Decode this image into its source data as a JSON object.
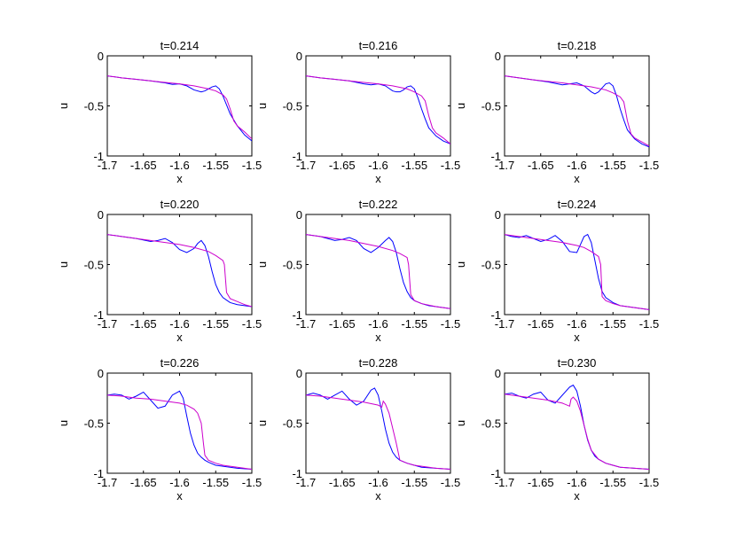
{
  "chart_data": [
    {
      "type": "line",
      "title": "t=0.214",
      "xlabel": "x",
      "ylabel": "u",
      "xlim": [
        -1.7,
        -1.5
      ],
      "ylim": [
        -1,
        0
      ],
      "xticks": [
        "-1.7",
        "-1.65",
        "-1.6",
        "-1.55",
        "-1.5"
      ],
      "yticks": [
        "0",
        "-0.5",
        "-1"
      ],
      "grid": false,
      "series": [
        {
          "color": "#0000ff",
          "x": [
            -1.7,
            -1.68,
            -1.66,
            -1.64,
            -1.62,
            -1.61,
            -1.6,
            -1.59,
            -1.58,
            -1.57,
            -1.565,
            -1.56,
            -1.555,
            -1.55,
            -1.545,
            -1.54,
            -1.535,
            -1.53,
            -1.52,
            -1.51,
            -1.5
          ],
          "y": [
            -0.2,
            -0.22,
            -0.235,
            -0.25,
            -0.27,
            -0.285,
            -0.28,
            -0.3,
            -0.34,
            -0.36,
            -0.35,
            -0.33,
            -0.31,
            -0.3,
            -0.33,
            -0.4,
            -0.49,
            -0.58,
            -0.7,
            -0.79,
            -0.85
          ]
        },
        {
          "color": "#cc00cc",
          "x": [
            -1.7,
            -1.68,
            -1.66,
            -1.64,
            -1.62,
            -1.6,
            -1.58,
            -1.56,
            -1.55,
            -1.54,
            -1.535,
            -1.53,
            -1.525,
            -1.52,
            -1.51,
            -1.5
          ],
          "y": [
            -0.2,
            -0.22,
            -0.235,
            -0.25,
            -0.265,
            -0.28,
            -0.3,
            -0.33,
            -0.35,
            -0.39,
            -0.43,
            -0.53,
            -0.65,
            -0.7,
            -0.76,
            -0.83
          ]
        }
      ]
    },
    {
      "type": "line",
      "title": "t=0.216",
      "xlabel": "x",
      "ylabel": "u",
      "xlim": [
        -1.7,
        -1.5
      ],
      "ylim": [
        -1,
        0
      ],
      "xticks": [
        "-1.7",
        "-1.65",
        "-1.6",
        "-1.55",
        "-1.5"
      ],
      "yticks": [
        "0",
        "-0.5",
        "-1"
      ],
      "grid": false,
      "series": [
        {
          "color": "#0000ff",
          "x": [
            -1.7,
            -1.68,
            -1.66,
            -1.64,
            -1.62,
            -1.61,
            -1.6,
            -1.59,
            -1.58,
            -1.575,
            -1.57,
            -1.565,
            -1.56,
            -1.555,
            -1.55,
            -1.545,
            -1.54,
            -1.535,
            -1.53,
            -1.52,
            -1.51,
            -1.5
          ],
          "y": [
            -0.2,
            -0.22,
            -0.235,
            -0.25,
            -0.28,
            -0.29,
            -0.28,
            -0.3,
            -0.35,
            -0.36,
            -0.36,
            -0.34,
            -0.31,
            -0.3,
            -0.33,
            -0.42,
            -0.53,
            -0.63,
            -0.72,
            -0.8,
            -0.85,
            -0.88
          ]
        },
        {
          "color": "#cc00cc",
          "x": [
            -1.7,
            -1.68,
            -1.66,
            -1.64,
            -1.62,
            -1.6,
            -1.58,
            -1.56,
            -1.55,
            -1.54,
            -1.535,
            -1.53,
            -1.525,
            -1.52,
            -1.51,
            -1.5
          ],
          "y": [
            -0.2,
            -0.22,
            -0.235,
            -0.25,
            -0.265,
            -0.28,
            -0.3,
            -0.33,
            -0.36,
            -0.4,
            -0.45,
            -0.6,
            -0.72,
            -0.77,
            -0.82,
            -0.88
          ]
        }
      ]
    },
    {
      "type": "line",
      "title": "t=0.218",
      "xlabel": "x",
      "ylabel": "u",
      "xlim": [
        -1.7,
        -1.5
      ],
      "ylim": [
        -1,
        0
      ],
      "xticks": [
        "-1.7",
        "-1.65",
        "-1.6",
        "-1.55",
        "-1.5"
      ],
      "yticks": [
        "0",
        "-0.5",
        "-1"
      ],
      "grid": false,
      "series": [
        {
          "color": "#0000ff",
          "x": [
            -1.7,
            -1.68,
            -1.66,
            -1.64,
            -1.62,
            -1.61,
            -1.6,
            -1.59,
            -1.58,
            -1.575,
            -1.57,
            -1.565,
            -1.56,
            -1.555,
            -1.55,
            -1.545,
            -1.54,
            -1.535,
            -1.53,
            -1.52,
            -1.51,
            -1.5
          ],
          "y": [
            -0.2,
            -0.22,
            -0.24,
            -0.26,
            -0.29,
            -0.28,
            -0.27,
            -0.3,
            -0.36,
            -0.38,
            -0.36,
            -0.32,
            -0.28,
            -0.27,
            -0.3,
            -0.4,
            -0.53,
            -0.64,
            -0.74,
            -0.83,
            -0.88,
            -0.91
          ]
        },
        {
          "color": "#cc00cc",
          "x": [
            -1.7,
            -1.68,
            -1.66,
            -1.64,
            -1.62,
            -1.6,
            -1.58,
            -1.56,
            -1.55,
            -1.54,
            -1.535,
            -1.53,
            -1.525,
            -1.52,
            -1.51,
            -1.5
          ],
          "y": [
            -0.2,
            -0.22,
            -0.24,
            -0.255,
            -0.27,
            -0.29,
            -0.31,
            -0.34,
            -0.37,
            -0.41,
            -0.46,
            -0.65,
            -0.78,
            -0.82,
            -0.86,
            -0.9
          ]
        }
      ]
    },
    {
      "type": "line",
      "title": "t=0.220",
      "xlabel": "x",
      "ylabel": "u",
      "xlim": [
        -1.7,
        -1.5
      ],
      "ylim": [
        -1,
        0
      ],
      "xticks": [
        "-1.7",
        "-1.65",
        "-1.6",
        "-1.55",
        "-1.5"
      ],
      "yticks": [
        "0",
        "-0.5",
        "-1"
      ],
      "grid": false,
      "series": [
        {
          "color": "#0000ff",
          "x": [
            -1.7,
            -1.68,
            -1.66,
            -1.64,
            -1.63,
            -1.62,
            -1.61,
            -1.6,
            -1.59,
            -1.58,
            -1.575,
            -1.57,
            -1.565,
            -1.56,
            -1.555,
            -1.55,
            -1.545,
            -1.54,
            -1.53,
            -1.52,
            -1.51,
            -1.5
          ],
          "y": [
            -0.2,
            -0.22,
            -0.24,
            -0.27,
            -0.26,
            -0.24,
            -0.28,
            -0.35,
            -0.38,
            -0.34,
            -0.29,
            -0.26,
            -0.31,
            -0.42,
            -0.57,
            -0.7,
            -0.78,
            -0.83,
            -0.88,
            -0.9,
            -0.91,
            -0.92
          ]
        },
        {
          "color": "#cc00cc",
          "x": [
            -1.7,
            -1.68,
            -1.66,
            -1.64,
            -1.62,
            -1.6,
            -1.58,
            -1.56,
            -1.55,
            -1.54,
            -1.538,
            -1.535,
            -1.53,
            -1.52,
            -1.51,
            -1.5
          ],
          "y": [
            -0.2,
            -0.22,
            -0.24,
            -0.26,
            -0.28,
            -0.3,
            -0.33,
            -0.37,
            -0.41,
            -0.46,
            -0.5,
            -0.78,
            -0.84,
            -0.87,
            -0.9,
            -0.92
          ]
        }
      ]
    },
    {
      "type": "line",
      "title": "t=0.222",
      "xlabel": "x",
      "ylabel": "u",
      "xlim": [
        -1.7,
        -1.5
      ],
      "ylim": [
        -1,
        0
      ],
      "xticks": [
        "-1.7",
        "-1.65",
        "-1.6",
        "-1.55",
        "-1.5"
      ],
      "yticks": [
        "0",
        "-0.5",
        "-1"
      ],
      "grid": false,
      "series": [
        {
          "color": "#0000ff",
          "x": [
            -1.7,
            -1.68,
            -1.66,
            -1.65,
            -1.64,
            -1.63,
            -1.62,
            -1.61,
            -1.6,
            -1.59,
            -1.585,
            -1.58,
            -1.575,
            -1.57,
            -1.565,
            -1.56,
            -1.555,
            -1.55,
            -1.54,
            -1.53,
            -1.52,
            -1.51,
            -1.5
          ],
          "y": [
            -0.2,
            -0.22,
            -0.26,
            -0.25,
            -0.23,
            -0.26,
            -0.34,
            -0.38,
            -0.33,
            -0.26,
            -0.23,
            -0.27,
            -0.38,
            -0.54,
            -0.68,
            -0.77,
            -0.83,
            -0.86,
            -0.89,
            -0.91,
            -0.92,
            -0.93,
            -0.94
          ]
        },
        {
          "color": "#cc00cc",
          "x": [
            -1.7,
            -1.68,
            -1.66,
            -1.64,
            -1.62,
            -1.6,
            -1.58,
            -1.57,
            -1.56,
            -1.558,
            -1.555,
            -1.55,
            -1.54,
            -1.52,
            -1.5
          ],
          "y": [
            -0.2,
            -0.22,
            -0.24,
            -0.26,
            -0.29,
            -0.32,
            -0.36,
            -0.39,
            -0.43,
            -0.5,
            -0.8,
            -0.86,
            -0.89,
            -0.92,
            -0.94
          ]
        }
      ]
    },
    {
      "type": "line",
      "title": "t=0.224",
      "xlabel": "x",
      "ylabel": "u",
      "xlim": [
        -1.7,
        -1.5
      ],
      "ylim": [
        -1,
        0
      ],
      "xticks": [
        "-1.7",
        "-1.65",
        "-1.6",
        "-1.55",
        "-1.5"
      ],
      "yticks": [
        "0",
        "-0.5",
        "-1"
      ],
      "grid": false,
      "series": [
        {
          "color": "#0000ff",
          "x": [
            -1.7,
            -1.69,
            -1.68,
            -1.67,
            -1.66,
            -1.65,
            -1.64,
            -1.63,
            -1.62,
            -1.61,
            -1.6,
            -1.595,
            -1.59,
            -1.585,
            -1.58,
            -1.575,
            -1.57,
            -1.565,
            -1.56,
            -1.55,
            -1.54,
            -1.52,
            -1.5
          ],
          "y": [
            -0.2,
            -0.22,
            -0.23,
            -0.21,
            -0.24,
            -0.27,
            -0.25,
            -0.21,
            -0.27,
            -0.37,
            -0.38,
            -0.3,
            -0.22,
            -0.2,
            -0.28,
            -0.46,
            -0.64,
            -0.77,
            -0.83,
            -0.88,
            -0.91,
            -0.93,
            -0.95
          ]
        },
        {
          "color": "#cc00cc",
          "x": [
            -1.7,
            -1.68,
            -1.66,
            -1.64,
            -1.62,
            -1.6,
            -1.59,
            -1.58,
            -1.57,
            -1.567,
            -1.565,
            -1.56,
            -1.55,
            -1.54,
            -1.52,
            -1.5
          ],
          "y": [
            -0.2,
            -0.22,
            -0.24,
            -0.26,
            -0.28,
            -0.31,
            -0.33,
            -0.37,
            -0.42,
            -0.5,
            -0.82,
            -0.86,
            -0.89,
            -0.91,
            -0.93,
            -0.95
          ]
        }
      ]
    },
    {
      "type": "line",
      "title": "t=0.226",
      "xlabel": "x",
      "ylabel": "u",
      "xlim": [
        -1.7,
        -1.5
      ],
      "ylim": [
        -1,
        0
      ],
      "xticks": [
        "-1.7",
        "-1.65",
        "-1.6",
        "-1.55",
        "-1.5"
      ],
      "yticks": [
        "0",
        "-0.5",
        "-1"
      ],
      "grid": false,
      "series": [
        {
          "color": "#0000ff",
          "x": [
            -1.7,
            -1.69,
            -1.68,
            -1.67,
            -1.66,
            -1.65,
            -1.64,
            -1.63,
            -1.62,
            -1.61,
            -1.6,
            -1.595,
            -1.59,
            -1.585,
            -1.58,
            -1.575,
            -1.57,
            -1.565,
            -1.56,
            -1.55,
            -1.54,
            -1.52,
            -1.5
          ],
          "y": [
            -0.22,
            -0.21,
            -0.22,
            -0.26,
            -0.23,
            -0.19,
            -0.27,
            -0.35,
            -0.33,
            -0.22,
            -0.18,
            -0.25,
            -0.43,
            -0.6,
            -0.72,
            -0.8,
            -0.84,
            -0.87,
            -0.89,
            -0.92,
            -0.93,
            -0.95,
            -0.96
          ]
        },
        {
          "color": "#cc00cc",
          "x": [
            -1.7,
            -1.68,
            -1.66,
            -1.64,
            -1.62,
            -1.6,
            -1.59,
            -1.58,
            -1.575,
            -1.57,
            -1.567,
            -1.565,
            -1.56,
            -1.55,
            -1.54,
            -1.52,
            -1.5
          ],
          "y": [
            -0.22,
            -0.23,
            -0.25,
            -0.26,
            -0.28,
            -0.3,
            -0.32,
            -0.36,
            -0.4,
            -0.5,
            -0.7,
            -0.82,
            -0.87,
            -0.9,
            -0.92,
            -0.94,
            -0.96
          ]
        }
      ]
    },
    {
      "type": "line",
      "title": "t=0.228",
      "xlabel": "x",
      "ylabel": "u",
      "xlim": [
        -1.7,
        -1.5
      ],
      "ylim": [
        -1,
        0
      ],
      "xticks": [
        "-1.7",
        "-1.65",
        "-1.6",
        "-1.55",
        "-1.5"
      ],
      "yticks": [
        "0",
        "-0.5",
        "-1"
      ],
      "grid": false,
      "series": [
        {
          "color": "#0000ff",
          "x": [
            -1.7,
            -1.69,
            -1.68,
            -1.67,
            -1.66,
            -1.65,
            -1.64,
            -1.63,
            -1.62,
            -1.61,
            -1.605,
            -1.6,
            -1.595,
            -1.59,
            -1.585,
            -1.58,
            -1.575,
            -1.57,
            -1.56,
            -1.55,
            -1.54,
            -1.52,
            -1.5
          ],
          "y": [
            -0.22,
            -0.2,
            -0.22,
            -0.26,
            -0.22,
            -0.18,
            -0.26,
            -0.32,
            -0.28,
            -0.17,
            -0.15,
            -0.22,
            -0.38,
            -0.56,
            -0.7,
            -0.79,
            -0.84,
            -0.87,
            -0.9,
            -0.92,
            -0.94,
            -0.95,
            -0.96
          ]
        },
        {
          "color": "#cc00cc",
          "x": [
            -1.7,
            -1.68,
            -1.66,
            -1.64,
            -1.62,
            -1.6,
            -1.595,
            -1.593,
            -1.59,
            -1.585,
            -1.58,
            -1.575,
            -1.57,
            -1.56,
            -1.55,
            -1.54,
            -1.52,
            -1.5
          ],
          "y": [
            -0.22,
            -0.23,
            -0.25,
            -0.27,
            -0.29,
            -0.32,
            -0.34,
            -0.28,
            -0.31,
            -0.4,
            -0.55,
            -0.7,
            -0.87,
            -0.9,
            -0.92,
            -0.93,
            -0.95,
            -0.96
          ]
        }
      ]
    },
    {
      "type": "line",
      "title": "t=0.230",
      "xlabel": "x",
      "ylabel": "u",
      "xlim": [
        -1.7,
        -1.5
      ],
      "ylim": [
        -1,
        0
      ],
      "xticks": [
        "-1.7",
        "-1.65",
        "-1.6",
        "-1.55",
        "-1.5"
      ],
      "yticks": [
        "0",
        "-0.5",
        "-1"
      ],
      "grid": false,
      "series": [
        {
          "color": "#0000ff",
          "x": [
            -1.7,
            -1.69,
            -1.68,
            -1.67,
            -1.66,
            -1.65,
            -1.64,
            -1.63,
            -1.62,
            -1.61,
            -1.605,
            -1.6,
            -1.595,
            -1.59,
            -1.585,
            -1.58,
            -1.575,
            -1.57,
            -1.56,
            -1.55,
            -1.54,
            -1.52,
            -1.5
          ],
          "y": [
            -0.21,
            -0.2,
            -0.23,
            -0.25,
            -0.21,
            -0.19,
            -0.27,
            -0.3,
            -0.22,
            -0.14,
            -0.12,
            -0.18,
            -0.33,
            -0.52,
            -0.67,
            -0.77,
            -0.83,
            -0.86,
            -0.9,
            -0.92,
            -0.94,
            -0.95,
            -0.96
          ]
        },
        {
          "color": "#cc00cc",
          "x": [
            -1.7,
            -1.68,
            -1.66,
            -1.64,
            -1.62,
            -1.61,
            -1.608,
            -1.605,
            -1.6,
            -1.595,
            -1.59,
            -1.585,
            -1.58,
            -1.57,
            -1.56,
            -1.55,
            -1.54,
            -1.52,
            -1.5
          ],
          "y": [
            -0.21,
            -0.23,
            -0.25,
            -0.27,
            -0.3,
            -0.33,
            -0.26,
            -0.24,
            -0.28,
            -0.38,
            -0.52,
            -0.66,
            -0.77,
            -0.86,
            -0.9,
            -0.92,
            -0.94,
            -0.95,
            -0.96
          ]
        }
      ]
    }
  ]
}
